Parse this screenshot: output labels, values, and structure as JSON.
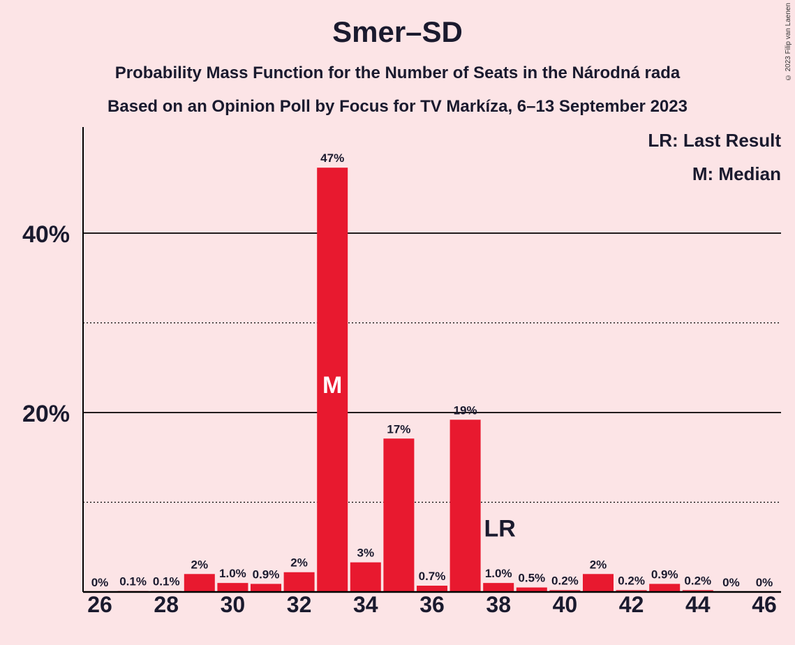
{
  "title": "Smer–SD",
  "subtitle": "Probability Mass Function for the Number of Seats in the Národná rada",
  "subtitle2": "Based on an Opinion Poll by Focus for TV Markíza, 6–13 September 2023",
  "credit": "© 2023 Filip van Laenen",
  "legend": {
    "lr": "LR: Last Result",
    "median": "M: Median"
  },
  "colors": {
    "bar": "#e8192f",
    "background": "#fce4e6",
    "text": "#1a1a2e"
  },
  "chart_data": {
    "type": "bar",
    "x": [
      26,
      27,
      28,
      29,
      30,
      31,
      32,
      33,
      34,
      35,
      36,
      37,
      38,
      39,
      40,
      41,
      42,
      43,
      44,
      45,
      46
    ],
    "values": [
      0,
      0.1,
      0.1,
      2.0,
      1.0,
      0.9,
      2.2,
      47.3,
      3.3,
      17.1,
      0.7,
      19.2,
      1.0,
      0.5,
      0.2,
      2.0,
      0.2,
      0.9,
      0.2,
      0,
      0
    ],
    "labels": [
      "0%",
      "0.1%",
      "0.1%",
      "2%",
      "1.0%",
      "0.9%",
      "2%",
      "47%",
      "3%",
      "17%",
      "0.7%",
      "19%",
      "1.0%",
      "0.5%",
      "0.2%",
      "2%",
      "0.2%",
      "0.9%",
      "0.2%",
      "0%",
      "0%"
    ],
    "xticks": [
      26,
      28,
      30,
      32,
      34,
      36,
      38,
      40,
      42,
      44,
      46
    ],
    "yticks": [
      {
        "value": 20,
        "label": "20%"
      },
      {
        "value": 40,
        "label": "40%"
      }
    ],
    "minor_gridlines": [
      10,
      30
    ],
    "ylim": [
      0,
      52
    ],
    "median": 33,
    "median_marker": "M",
    "last_result": 38,
    "last_result_marker": "LR",
    "grid": true,
    "legend_position": "top-right"
  }
}
